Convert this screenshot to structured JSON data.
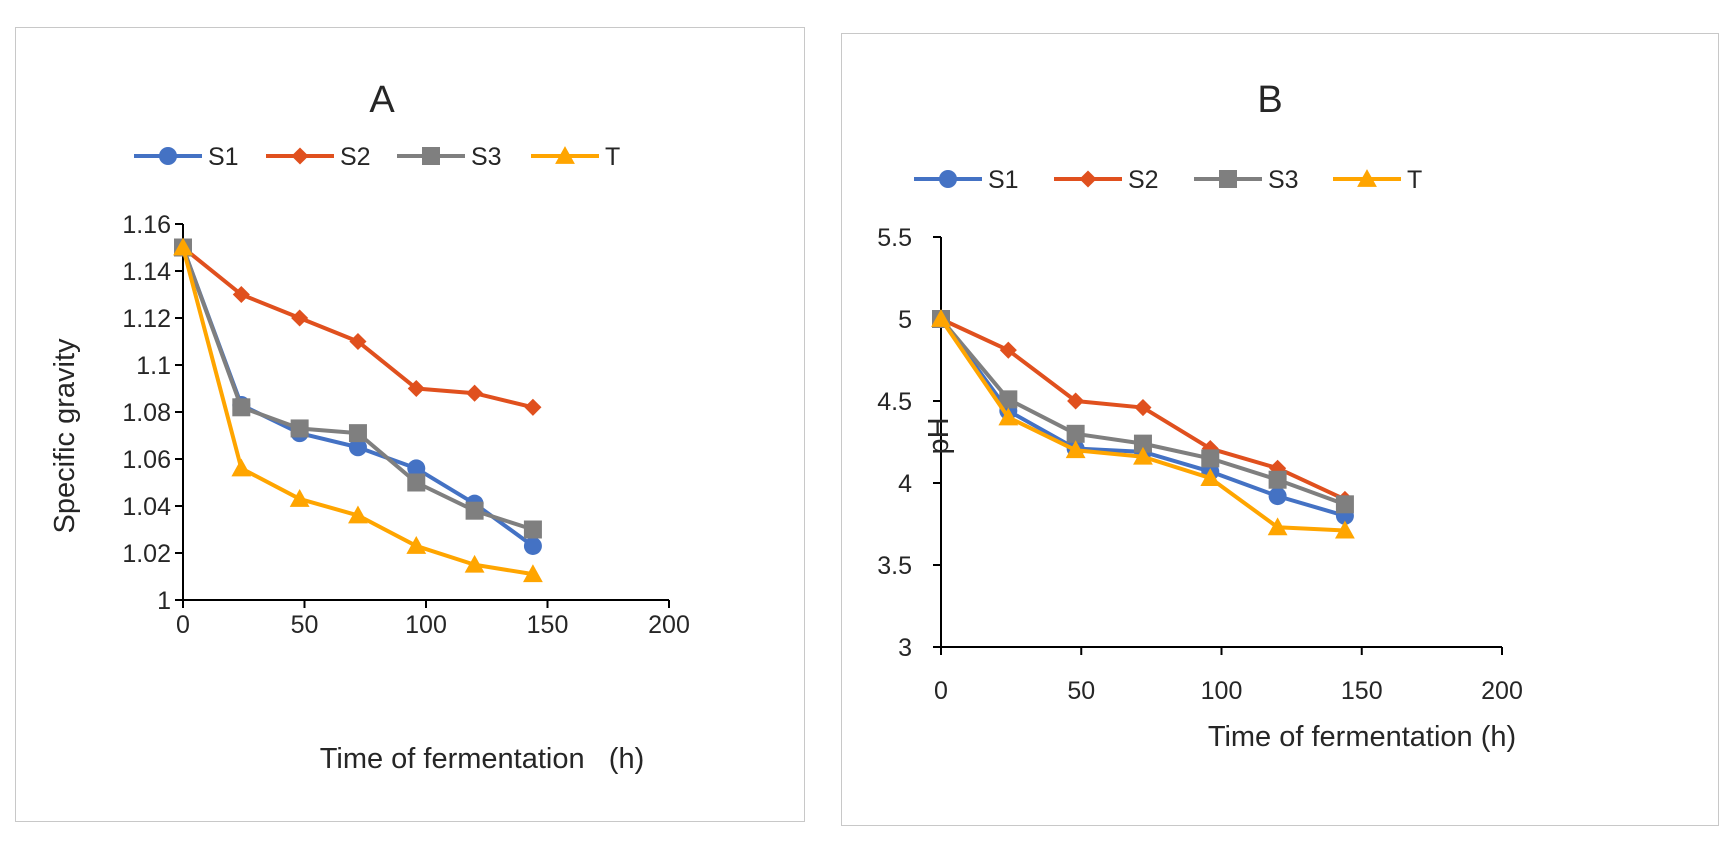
{
  "charts": {
    "a": {
      "title": "A",
      "xlabel": "Time of fermentation   (h)",
      "ylabel": "Specific gravity"
    },
    "b": {
      "title": "B",
      "xlabel": "Time of fermentation (h)",
      "ylabel": "pH"
    }
  },
  "legend": [
    "S1",
    "S2",
    "S3",
    "T"
  ],
  "colors": {
    "S1": "#4472C4",
    "S2": "#E0501E",
    "S3": "#7F7F7F",
    "T": "#FFA500"
  },
  "chart_data": [
    {
      "type": "line",
      "title": "A",
      "xlabel": "Time of fermentation   (h)",
      "ylabel": "Specific gravity",
      "xlim": [
        0,
        200
      ],
      "ylim": [
        1,
        1.16
      ],
      "xticks": [
        "0",
        "50",
        "100",
        "150",
        "200"
      ],
      "yticks": [
        "1",
        "1.02",
        "1.04",
        "1.06",
        "1.08",
        "1.1",
        "1.12",
        "1.14",
        "1.16"
      ],
      "legend_position": "top",
      "grid": false,
      "x": [
        0,
        24,
        48,
        72,
        96,
        120,
        144
      ],
      "series": [
        {
          "name": "S1",
          "marker": "circle",
          "color": "#4472C4",
          "values": [
            1.15,
            1.083,
            1.071,
            1.065,
            1.056,
            1.041,
            1.023
          ]
        },
        {
          "name": "S2",
          "marker": "diamond",
          "color": "#E0501E",
          "values": [
            1.15,
            1.13,
            1.12,
            1.11,
            1.09,
            1.088,
            1.082
          ]
        },
        {
          "name": "S3",
          "marker": "square",
          "color": "#7F7F7F",
          "values": [
            1.15,
            1.082,
            1.073,
            1.071,
            1.05,
            1.038,
            1.03
          ]
        },
        {
          "name": "T",
          "marker": "triangle",
          "color": "#FFA500",
          "values": [
            1.15,
            1.056,
            1.043,
            1.036,
            1.023,
            1.015,
            1.011
          ]
        }
      ]
    },
    {
      "type": "line",
      "title": "B",
      "xlabel": "Time of fermentation (h)",
      "ylabel": "pH",
      "xlim": [
        0,
        200
      ],
      "ylim": [
        3,
        5.5
      ],
      "xticks": [
        "0",
        "50",
        "100",
        "150",
        "200"
      ],
      "yticks": [
        "3",
        "3.5",
        "4",
        "4.5",
        "5",
        "5.5"
      ],
      "legend_position": "top",
      "grid": false,
      "x": [
        0,
        24,
        48,
        72,
        96,
        120,
        144
      ],
      "series": [
        {
          "name": "S1",
          "marker": "circle",
          "color": "#4472C4",
          "values": [
            5.0,
            4.44,
            4.21,
            4.19,
            4.07,
            3.92,
            3.8
          ]
        },
        {
          "name": "S2",
          "marker": "diamond",
          "color": "#E0501E",
          "values": [
            5.0,
            4.81,
            4.5,
            4.46,
            4.21,
            4.09,
            3.9
          ]
        },
        {
          "name": "S3",
          "marker": "square",
          "color": "#7F7F7F",
          "values": [
            5.0,
            4.51,
            4.3,
            4.24,
            4.15,
            4.02,
            3.87
          ]
        },
        {
          "name": "T",
          "marker": "triangle",
          "color": "#FFA500",
          "values": [
            5.0,
            4.4,
            4.2,
            4.16,
            4.03,
            3.73,
            3.71
          ]
        }
      ]
    }
  ]
}
